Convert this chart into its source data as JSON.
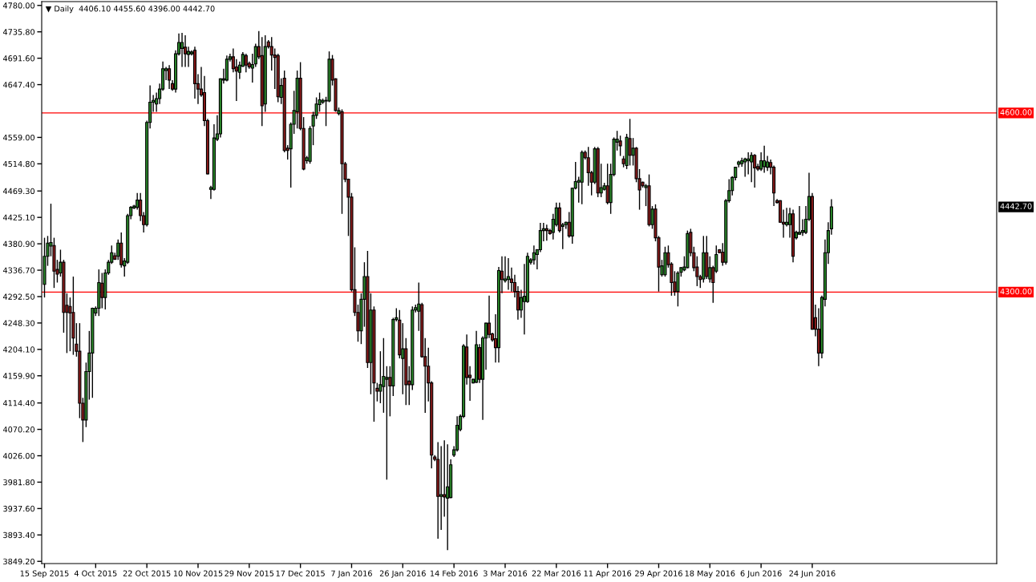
{
  "chart_data": {
    "type": "candlestick",
    "title": "▼ Daily  4406.10 4455.60 4396.00 4442.70",
    "categories": [
      "15 Sep 2015",
      null,
      null,
      null,
      null,
      null,
      null,
      null,
      null,
      null,
      null,
      null,
      null,
      null,
      null,
      null,
      "4 Oct 2015",
      null,
      null,
      null,
      null,
      null,
      null,
      null,
      null,
      null,
      null,
      null,
      null,
      null,
      null,
      null,
      "22 Oct 2015",
      null,
      null,
      null,
      null,
      null,
      null,
      null,
      null,
      null,
      null,
      null,
      null,
      null,
      null,
      null,
      "10 Nov 2015",
      null,
      null,
      null,
      null,
      null,
      null,
      null,
      null,
      null,
      null,
      null,
      null,
      null,
      null,
      null,
      "29 Nov 2015",
      null,
      null,
      null,
      null,
      null,
      null,
      null,
      null,
      null,
      null,
      null,
      null,
      null,
      null,
      null,
      "17 Dec 2015",
      null,
      null,
      null,
      null,
      null,
      null,
      null,
      null,
      null,
      null,
      null,
      null,
      null,
      null,
      null,
      "7 Jan 2016",
      null,
      null,
      null,
      null,
      null,
      null,
      null,
      null,
      null,
      null,
      null,
      null,
      null,
      null,
      null,
      "26 Jan 2016",
      null,
      null,
      null,
      null,
      null,
      null,
      null,
      null,
      null,
      null,
      null,
      null,
      null,
      null,
      null,
      "14 Feb 2016",
      null,
      null,
      null,
      null,
      null,
      null,
      null,
      null,
      null,
      null,
      null,
      null,
      null,
      null,
      null,
      "3 Mar 2016",
      null,
      null,
      null,
      null,
      null,
      null,
      null,
      null,
      null,
      null,
      null,
      null,
      null,
      null,
      null,
      "22 Mar 2016",
      null,
      null,
      null,
      null,
      null,
      null,
      null,
      null,
      null,
      null,
      null,
      null,
      null,
      null,
      null,
      "11 Apr 2016",
      null,
      null,
      null,
      null,
      null,
      null,
      null,
      null,
      null,
      null,
      null,
      null,
      null,
      null,
      null,
      "29 Apr 2016",
      null,
      null,
      null,
      null,
      null,
      null,
      null,
      null,
      null,
      null,
      null,
      null,
      null,
      null,
      null,
      "18 May 2016",
      null,
      null,
      null,
      null,
      null,
      null,
      null,
      null,
      null,
      null,
      null,
      null,
      null,
      null,
      null,
      "6 Jun 2016",
      null,
      null,
      null,
      null,
      null,
      null,
      null,
      null,
      null,
      null,
      null,
      null,
      null,
      null,
      null,
      "24 Jun 2016",
      null,
      null,
      null,
      null,
      null,
      null
    ],
    "ohlc": [
      [
        4313,
        4391,
        4291,
        4360
      ],
      [
        4360,
        4394,
        4344,
        4382
      ],
      [
        4377,
        4448,
        4360,
        4383
      ],
      [
        4378,
        4391,
        4307,
        4335
      ],
      [
        4338,
        4354,
        4316,
        4330
      ],
      [
        4332,
        4371,
        4326,
        4350
      ],
      [
        4350,
        4354,
        4232,
        4266
      ],
      [
        4278,
        4298,
        4198,
        4266
      ],
      [
        4276,
        4291,
        4201,
        4265
      ],
      [
        4266,
        4326,
        4195,
        4223
      ],
      [
        4213,
        4248,
        4192,
        4201
      ],
      [
        4201,
        4248,
        4089,
        4114
      ],
      [
        4114,
        4123,
        4049,
        4086
      ],
      [
        4086,
        4182,
        4074,
        4167
      ],
      [
        4167,
        4235,
        4120,
        4198
      ],
      [
        4198,
        4274,
        4123,
        4273
      ],
      [
        4265,
        4276,
        4260,
        4273
      ],
      [
        4273,
        4338,
        4260,
        4316
      ],
      [
        4315,
        4332,
        4273,
        4291
      ],
      [
        4291,
        4338,
        4271,
        4332
      ],
      [
        4332,
        4354,
        4329,
        4350
      ],
      [
        4350,
        4378,
        4347,
        4366
      ],
      [
        4361,
        4366,
        4354,
        4355
      ],
      [
        4360,
        4388,
        4354,
        4382
      ],
      [
        4382,
        4400,
        4341,
        4346
      ],
      [
        4344,
        4357,
        4326,
        4352
      ],
      [
        4350,
        4431,
        4347,
        4428
      ],
      [
        4428,
        4444,
        4422,
        4442
      ],
      [
        4441,
        4446,
        4439,
        4444
      ],
      [
        4442,
        4466,
        4438,
        4454
      ],
      [
        4454,
        4466,
        4419,
        4428
      ],
      [
        4428,
        4434,
        4400,
        4413
      ],
      [
        4413,
        4587,
        4410,
        4584
      ],
      [
        4584,
        4646,
        4574,
        4618
      ],
      [
        4618,
        4630,
        4602,
        4621
      ],
      [
        4615,
        4634,
        4602,
        4624
      ],
      [
        4624,
        4649,
        4615,
        4640
      ],
      [
        4640,
        4686,
        4637,
        4674
      ],
      [
        4671,
        4677,
        4655,
        4674
      ],
      [
        4674,
        4680,
        4640,
        4655
      ],
      [
        4649,
        4655,
        4637,
        4640
      ],
      [
        4640,
        4705,
        4634,
        4699
      ],
      [
        4699,
        4733,
        4696,
        4718
      ],
      [
        4708,
        4734,
        4677,
        4718
      ],
      [
        4710,
        4730,
        4677,
        4699
      ],
      [
        4698,
        4711,
        4677,
        4703
      ],
      [
        4699,
        4705,
        4696,
        4702
      ],
      [
        4705,
        4711,
        4624,
        4649
      ],
      [
        4649,
        4665,
        4615,
        4640
      ],
      [
        4640,
        4677,
        4627,
        4630
      ],
      [
        4634,
        4662,
        4578,
        4587
      ],
      [
        4587,
        4590,
        4497,
        4498
      ],
      [
        4472,
        4478,
        4456,
        4475
      ],
      [
        4472,
        4581,
        4470,
        4558
      ],
      [
        4556,
        4596,
        4553,
        4565
      ],
      [
        4565,
        4658,
        4559,
        4657
      ],
      [
        4655,
        4674,
        4649,
        4657
      ],
      [
        4655,
        4696,
        4653,
        4690
      ],
      [
        4690,
        4699,
        4686,
        4694
      ],
      [
        4694,
        4708,
        4668,
        4674
      ],
      [
        4677,
        4690,
        4620,
        4670
      ],
      [
        4668,
        4686,
        4657,
        4680
      ],
      [
        4678,
        4702,
        4677,
        4698
      ],
      [
        4696,
        4699,
        4668,
        4680
      ],
      [
        4683,
        4686,
        4674,
        4677
      ],
      [
        4675,
        4699,
        4651,
        4681
      ],
      [
        4682,
        4716,
        4677,
        4711
      ],
      [
        4711,
        4737,
        4690,
        4694
      ],
      [
        4696,
        4727,
        4578,
        4612
      ],
      [
        4615,
        4730,
        4602,
        4711
      ],
      [
        4719,
        4722,
        4708,
        4711
      ],
      [
        4711,
        4727,
        4671,
        4697
      ],
      [
        4697,
        4708,
        4640,
        4693
      ],
      [
        4696,
        4699,
        4618,
        4627
      ],
      [
        4626,
        4658,
        4615,
        4646
      ],
      [
        4658,
        4671,
        4534,
        4537
      ],
      [
        4541,
        4546,
        4522,
        4537
      ],
      [
        4540,
        4584,
        4475,
        4581
      ],
      [
        4581,
        4637,
        4565,
        4604
      ],
      [
        4602,
        4671,
        4574,
        4658
      ],
      [
        4658,
        4685,
        4571,
        4574
      ],
      [
        4574,
        4593,
        4504,
        4506
      ],
      [
        4520,
        4528,
        4515,
        4525
      ],
      [
        4519,
        4578,
        4515,
        4574
      ],
      [
        4578,
        4602,
        4546,
        4596
      ],
      [
        4596,
        4626,
        4590,
        4615
      ],
      [
        4614,
        4634,
        4602,
        4622
      ],
      [
        4618,
        4624,
        4615,
        4621
      ],
      [
        4621,
        4627,
        4578,
        4620
      ],
      [
        4620,
        4703,
        4618,
        4690
      ],
      [
        4690,
        4697,
        4646,
        4655
      ],
      [
        4657,
        4658,
        4602,
        4604
      ],
      [
        4599,
        4609,
        4596,
        4604
      ],
      [
        4602,
        4606,
        4431,
        4515
      ],
      [
        4515,
        4518,
        4484,
        4489
      ],
      [
        4489,
        4490,
        4394,
        4459
      ],
      [
        4459,
        4466,
        4301,
        4304
      ],
      [
        4304,
        4375,
        4260,
        4266
      ],
      [
        4266,
        4279,
        4217,
        4235
      ],
      [
        4235,
        4298,
        4213,
        4288
      ],
      [
        4288,
        4350,
        4242,
        4326
      ],
      [
        4326,
        4369,
        4173,
        4182
      ],
      [
        4182,
        4298,
        4129,
        4270
      ],
      [
        4270,
        4276,
        4083,
        4148
      ],
      [
        4139,
        4148,
        4117,
        4134
      ],
      [
        4134,
        4201,
        4114,
        4145
      ],
      [
        4142,
        4223,
        4098,
        4159
      ],
      [
        4154,
        4176,
        3986,
        4157
      ],
      [
        4157,
        4176,
        4092,
        4143
      ],
      [
        4143,
        4257,
        4126,
        4254
      ],
      [
        4254,
        4273,
        4251,
        4257
      ],
      [
        4253,
        4270,
        4189,
        4195
      ],
      [
        4189,
        4248,
        4129,
        4205
      ],
      [
        4205,
        4223,
        4111,
        4145
      ],
      [
        4151,
        4176,
        4111,
        4145
      ],
      [
        4145,
        4276,
        4136,
        4270
      ],
      [
        4270,
        4279,
        4266,
        4274
      ],
      [
        4268,
        4316,
        4235,
        4280
      ],
      [
        4279,
        4282,
        4190,
        4192
      ],
      [
        4192,
        4223,
        4098,
        4176
      ],
      [
        4176,
        4207,
        4117,
        4148
      ],
      [
        4148,
        4151,
        4005,
        4027
      ],
      [
        4024,
        4027,
        4017,
        4020
      ],
      [
        4020,
        4049,
        3887,
        3958
      ],
      [
        3958,
        4042,
        3902,
        3961
      ],
      [
        3961,
        4052,
        3924,
        3957
      ],
      [
        3955,
        4045,
        3868,
        3974
      ],
      [
        3956,
        4020,
        3955,
        4011
      ],
      [
        4027,
        4042,
        4024,
        4036
      ],
      [
        4036,
        4092,
        4033,
        4077
      ],
      [
        4070,
        4095,
        4067,
        4092
      ],
      [
        4092,
        4213,
        4089,
        4210
      ],
      [
        4208,
        4229,
        4145,
        4157
      ],
      [
        4161,
        4176,
        4118,
        4157
      ],
      [
        4148,
        4155,
        4147,
        4154
      ],
      [
        4149,
        4235,
        4148,
        4212
      ],
      [
        4207,
        4213,
        4148,
        4154
      ],
      [
        4154,
        4226,
        4086,
        4223
      ],
      [
        4223,
        4249,
        4170,
        4248
      ],
      [
        4248,
        4294,
        4223,
        4229
      ],
      [
        4230,
        4232,
        4217,
        4220
      ],
      [
        4222,
        4263,
        4182,
        4207
      ],
      [
        4207,
        4342,
        4182,
        4336
      ],
      [
        4335,
        4360,
        4298,
        4321
      ],
      [
        4319,
        4360,
        4316,
        4322
      ],
      [
        4321,
        4357,
        4304,
        4326
      ],
      [
        4322,
        4341,
        4301,
        4316
      ],
      [
        4316,
        4329,
        4291,
        4301
      ],
      [
        4301,
        4310,
        4254,
        4270
      ],
      [
        4270,
        4304,
        4257,
        4291
      ],
      [
        4284,
        4347,
        4229,
        4293
      ],
      [
        4284,
        4366,
        4282,
        4360
      ],
      [
        4350,
        4357,
        4346,
        4354
      ],
      [
        4354,
        4378,
        4346,
        4366
      ],
      [
        4363,
        4372,
        4338,
        4371
      ],
      [
        4371,
        4416,
        4367,
        4403
      ],
      [
        4403,
        4416,
        4385,
        4406
      ],
      [
        4406,
        4413,
        4386,
        4403
      ],
      [
        4403,
        4406,
        4396,
        4398
      ],
      [
        4400,
        4431,
        4388,
        4422
      ],
      [
        4413,
        4450,
        4410,
        4441
      ],
      [
        4441,
        4450,
        4400,
        4403
      ],
      [
        4410,
        4416,
        4372,
        4413
      ],
      [
        4413,
        4418,
        4406,
        4417
      ],
      [
        4417,
        4434,
        4391,
        4394
      ],
      [
        4394,
        4475,
        4381,
        4474
      ],
      [
        4474,
        4518,
        4472,
        4485
      ],
      [
        4484,
        4493,
        4450,
        4487
      ],
      [
        4484,
        4537,
        4447,
        4534
      ],
      [
        4534,
        4537,
        4522,
        4525
      ],
      [
        4525,
        4543,
        4478,
        4500
      ],
      [
        4500,
        4503,
        4462,
        4484
      ],
      [
        4484,
        4543,
        4481,
        4540
      ],
      [
        4540,
        4543,
        4459,
        4466
      ],
      [
        4466,
        4515,
        4459,
        4475
      ],
      [
        4472,
        4483,
        4470,
        4478
      ],
      [
        4478,
        4515,
        4447,
        4450
      ],
      [
        4450,
        4515,
        4431,
        4497
      ],
      [
        4497,
        4559,
        4494,
        4556
      ],
      [
        4551,
        4570,
        4537,
        4556
      ],
      [
        4553,
        4562,
        4528,
        4545
      ],
      [
        4523,
        4528,
        4509,
        4515
      ],
      [
        4512,
        4565,
        4506,
        4559
      ],
      [
        4557,
        4590,
        4512,
        4529
      ],
      [
        4529,
        4558,
        4512,
        4541
      ],
      [
        4541,
        4543,
        4484,
        4490
      ],
      [
        4490,
        4506,
        4438,
        4471
      ],
      [
        4484,
        4485,
        4475,
        4478
      ],
      [
        4475,
        4481,
        4444,
        4478
      ],
      [
        4478,
        4497,
        4410,
        4413
      ],
      [
        4413,
        4444,
        4406,
        4439
      ],
      [
        4439,
        4447,
        4385,
        4391
      ],
      [
        4391,
        4394,
        4301,
        4342
      ],
      [
        4329,
        4354,
        4326,
        4344
      ],
      [
        4329,
        4376,
        4326,
        4366
      ],
      [
        4366,
        4378,
        4341,
        4346
      ],
      [
        4347,
        4350,
        4294,
        4316
      ],
      [
        4317,
        4335,
        4294,
        4301
      ],
      [
        4301,
        4335,
        4276,
        4332
      ],
      [
        4333,
        4342,
        4326,
        4341
      ],
      [
        4337,
        4360,
        4335,
        4342
      ],
      [
        4341,
        4403,
        4340,
        4398
      ],
      [
        4400,
        4406,
        4360,
        4366
      ],
      [
        4366,
        4376,
        4335,
        4341
      ],
      [
        4342,
        4360,
        4310,
        4326
      ],
      [
        4326,
        4329,
        4307,
        4321
      ],
      [
        4322,
        4394,
        4316,
        4366
      ],
      [
        4366,
        4394,
        4322,
        4326
      ],
      [
        4322,
        4360,
        4316,
        4341
      ],
      [
        4341,
        4344,
        4282,
        4316
      ],
      [
        4335,
        4378,
        4332,
        4363
      ],
      [
        4371,
        4372,
        4365,
        4366
      ],
      [
        4367,
        4382,
        4344,
        4350
      ],
      [
        4350,
        4456,
        4346,
        4453
      ],
      [
        4453,
        4489,
        4450,
        4470
      ],
      [
        4470,
        4494,
        4462,
        4492
      ],
      [
        4492,
        4510,
        4487,
        4509
      ],
      [
        4514,
        4520,
        4509,
        4518
      ],
      [
        4515,
        4525,
        4510,
        4520
      ],
      [
        4518,
        4525,
        4493,
        4523
      ],
      [
        4520,
        4534,
        4497,
        4523
      ],
      [
        4518,
        4534,
        4484,
        4529
      ],
      [
        4529,
        4531,
        4475,
        4508
      ],
      [
        4510,
        4515,
        4503,
        4506
      ],
      [
        4506,
        4534,
        4503,
        4520
      ],
      [
        4510,
        4545,
        4500,
        4520
      ],
      [
        4509,
        4528,
        4503,
        4518
      ],
      [
        4517,
        4522,
        4497,
        4509
      ],
      [
        4509,
        4512,
        4444,
        4466
      ],
      [
        4453,
        4456,
        4448,
        4450
      ],
      [
        4453,
        4454,
        4416,
        4417
      ],
      [
        4417,
        4438,
        4391,
        4414
      ],
      [
        4413,
        4441,
        4410,
        4417
      ],
      [
        4413,
        4441,
        4391,
        4431
      ],
      [
        4431,
        4438,
        4350,
        4360
      ],
      [
        4391,
        4403,
        4388,
        4400
      ],
      [
        4397,
        4444,
        4396,
        4400
      ],
      [
        4400,
        4422,
        4394,
        4403
      ],
      [
        4400,
        4444,
        4397,
        4422
      ],
      [
        4422,
        4500,
        4419,
        4460
      ],
      [
        4460,
        4466,
        4237,
        4238
      ],
      [
        4257,
        4279,
        4226,
        4238
      ],
      [
        4238,
        4273,
        4176,
        4198
      ],
      [
        4198,
        4294,
        4189,
        4291
      ],
      [
        4288,
        4388,
        4276,
        4366
      ],
      [
        4366,
        4417,
        4347,
        4403
      ],
      [
        4406.1,
        4455.6,
        4396.0,
        4442.7
      ]
    ],
    "colors": [
      "#2a8a2a",
      "#2a8a2a",
      "#2a8a2a",
      "#8b1a1a",
      "#8b1a1a",
      "#2a8a2a",
      "#8b1a1a",
      "#8b1a1a",
      "#8b1a1a",
      "#8b1a1a",
      "#8b1a1a",
      "#8b1a1a",
      "#8b1a1a",
      "#2a8a2a",
      "#2a8a2a",
      "#2a8a2a",
      "#2a8a2a",
      "#2a8a2a",
      "#8b1a1a",
      "#2a8a2a",
      "#2a8a2a",
      "#2a8a2a",
      "#8b1a1a",
      "#2a8a2a",
      "#8b1a1a",
      "#2a8a2a",
      "#2a8a2a",
      "#2a8a2a",
      "#2a8a2a",
      "#2a8a2a",
      "#8b1a1a",
      "#8b1a1a",
      "#2a8a2a",
      "#2a8a2a",
      "#2a8a2a",
      "#2a8a2a",
      "#2a8a2a",
      "#2a8a2a",
      "#2a8a2a",
      "#8b1a1a",
      "#8b1a1a",
      "#2a8a2a",
      "#2a8a2a",
      "#2a8a2a",
      "#8b1a1a",
      "#2a8a2a",
      "#2a8a2a",
      "#8b1a1a",
      "#8b1a1a",
      "#8b1a1a",
      "#8b1a1a",
      "#8b1a1a",
      "#2a8a2a",
      "#2a8a2a",
      "#2a8a2a",
      "#2a8a2a",
      "#2a8a2a",
      "#2a8a2a",
      "#2a8a2a",
      "#8b1a1a",
      "#8b1a1a",
      "#2a8a2a",
      "#2a8a2a",
      "#8b1a1a",
      "#8b1a1a",
      "#2a8a2a",
      "#2a8a2a",
      "#8b1a1a",
      "#8b1a1a",
      "#2a8a2a",
      "#8b1a1a",
      "#8b1a1a",
      "#8b1a1a",
      "#8b1a1a",
      "#2a8a2a",
      "#8b1a1a",
      "#8b1a1a",
      "#2a8a2a",
      "#2a8a2a",
      "#2a8a2a",
      "#8b1a1a",
      "#8b1a1a",
      "#2a8a2a",
      "#2a8a2a",
      "#2a8a2a",
      "#2a8a2a",
      "#2a8a2a",
      "#2a8a2a",
      "#8b1a1a",
      "#2a8a2a",
      "#8b1a1a",
      "#8b1a1a",
      "#2a8a2a",
      "#8b1a1a",
      "#8b1a1a",
      "#8b1a1a",
      "#8b1a1a",
      "#8b1a1a",
      "#8b1a1a",
      "#2a8a2a",
      "#2a8a2a",
      "#8b1a1a",
      "#2a8a2a",
      "#8b1a1a",
      "#8b1a1a",
      "#2a8a2a",
      "#2a8a2a",
      "#2a8a2a",
      "#8b1a1a",
      "#2a8a2a",
      "#2a8a2a",
      "#8b1a1a",
      "#2a8a2a",
      "#8b1a1a",
      "#8b1a1a",
      "#2a8a2a",
      "#2a8a2a",
      "#2a8a2a",
      "#8b1a1a",
      "#8b1a1a",
      "#8b1a1a",
      "#8b1a1a",
      "#8b1a1a",
      "#8b1a1a",
      "#2a8a2a",
      "#8b1a1a",
      "#2a8a2a",
      "#2a8a2a",
      "#2a8a2a",
      "#2a8a2a",
      "#2a8a2a",
      "#2a8a2a",
      "#8b1a1a",
      "#8b1a1a",
      "#2a8a2a",
      "#2a8a2a",
      "#8b1a1a",
      "#2a8a2a",
      "#2a8a2a",
      "#8b1a1a",
      "#8b1a1a",
      "#8b1a1a",
      "#2a8a2a",
      "#8b1a1a",
      "#2a8a2a",
      "#2a8a2a",
      "#8b1a1a",
      "#8b1a1a",
      "#8b1a1a",
      "#2a8a2a",
      "#2a8a2a",
      "#2a8a2a",
      "#2a8a2a",
      "#2a8a2a",
      "#2a8a2a",
      "#2a8a2a",
      "#2a8a2a",
      "#8b1a1a",
      "#8b1a1a",
      "#2a8a2a",
      "#2a8a2a",
      "#8b1a1a",
      "#2a8a2a",
      "#2a8a2a",
      "#8b1a1a",
      "#2a8a2a",
      "#2a8a2a",
      "#2a8a2a",
      "#2a8a2a",
      "#8b1a1a",
      "#8b1a1a",
      "#8b1a1a",
      "#2a8a2a",
      "#8b1a1a",
      "#2a8a2a",
      "#2a8a2a",
      "#8b1a1a",
      "#2a8a2a",
      "#2a8a2a",
      "#2a8a2a",
      "#8b1a1a",
      "#8b1a1a",
      "#2a8a2a",
      "#8b1a1a",
      "#2a8a2a",
      "#8b1a1a",
      "#8b1a1a",
      "#8b1a1a",
      "#2a8a2a",
      "#8b1a1a",
      "#2a8a2a",
      "#8b1a1a",
      "#8b1a1a",
      "#2a8a2a",
      "#2a8a2a",
      "#8b1a1a",
      "#8b1a1a",
      "#8b1a1a",
      "#2a8a2a",
      "#2a8a2a",
      "#2a8a2a",
      "#2a8a2a",
      "#8b1a1a",
      "#8b1a1a",
      "#8b1a1a",
      "#8b1a1a",
      "#2a8a2a",
      "#8b1a1a",
      "#2a8a2a",
      "#8b1a1a",
      "#2a8a2a",
      "#8b1a1a",
      "#8b1a1a",
      "#2a8a2a",
      "#2a8a2a",
      "#2a8a2a",
      "#2a8a2a",
      "#2a8a2a",
      "#2a8a2a",
      "#2a8a2a",
      "#2a8a2a",
      "#2a8a2a",
      "#8b1a1a",
      "#8b1a1a",
      "#2a8a2a",
      "#2a8a2a",
      "#2a8a2a",
      "#8b1a1a",
      "#8b1a1a",
      "#8b1a1a",
      "#8b1a1a",
      "#8b1a1a",
      "#2a8a2a",
      "#2a8a2a",
      "#8b1a1a",
      "#2a8a2a",
      "#2a8a2a",
      "#2a8a2a",
      "#2a8a2a",
      "#2a8a2a",
      "#8b1a1a",
      "#8b1a1a",
      "#8b1a1a",
      "#2a8a2a",
      "#2a8a2a",
      "#2a8a2a",
      "#2a8a2a"
    ],
    "ylim": [
      3845.5,
      4786.4
    ],
    "yticks": [
      {
        "value": 4780.0,
        "label": "4780.00"
      },
      {
        "value": 4735.8,
        "label": "4735.80"
      },
      {
        "value": 4691.6,
        "label": "4691.60"
      },
      {
        "value": 4647.4,
        "label": "4647.40"
      },
      {
        "value": 4559.0,
        "label": "4559.00"
      },
      {
        "value": 4514.8,
        "label": "4514.80"
      },
      {
        "value": 4469.3,
        "label": "4469.30"
      },
      {
        "value": 4425.1,
        "label": "4425.10"
      },
      {
        "value": 4380.9,
        "label": "4380.90"
      },
      {
        "value": 4336.7,
        "label": "4336.70"
      },
      {
        "value": 4292.5,
        "label": "4292.50"
      },
      {
        "value": 4248.3,
        "label": "4248.30"
      },
      {
        "value": 4204.1,
        "label": "4204.10"
      },
      {
        "value": 4159.9,
        "label": "4159.90"
      },
      {
        "value": 4114.4,
        "label": "4114.40"
      },
      {
        "value": 4070.2,
        "label": "4070.20"
      },
      {
        "value": 4026.0,
        "label": "4026.00"
      },
      {
        "value": 3981.8,
        "label": "3981.80"
      },
      {
        "value": 3937.6,
        "label": "3937.60"
      },
      {
        "value": 3893.4,
        "label": "3893.40"
      },
      {
        "value": 3849.2,
        "label": "3849.20"
      }
    ],
    "ref_lines": [
      {
        "axis": "y",
        "value": 4600,
        "label": "4600.00",
        "color": "#ff0000"
      },
      {
        "axis": "y",
        "value": 4300,
        "label": "4300.00",
        "color": "#ff0000"
      }
    ],
    "annotations": [
      "4442.70"
    ],
    "grid": false
  }
}
